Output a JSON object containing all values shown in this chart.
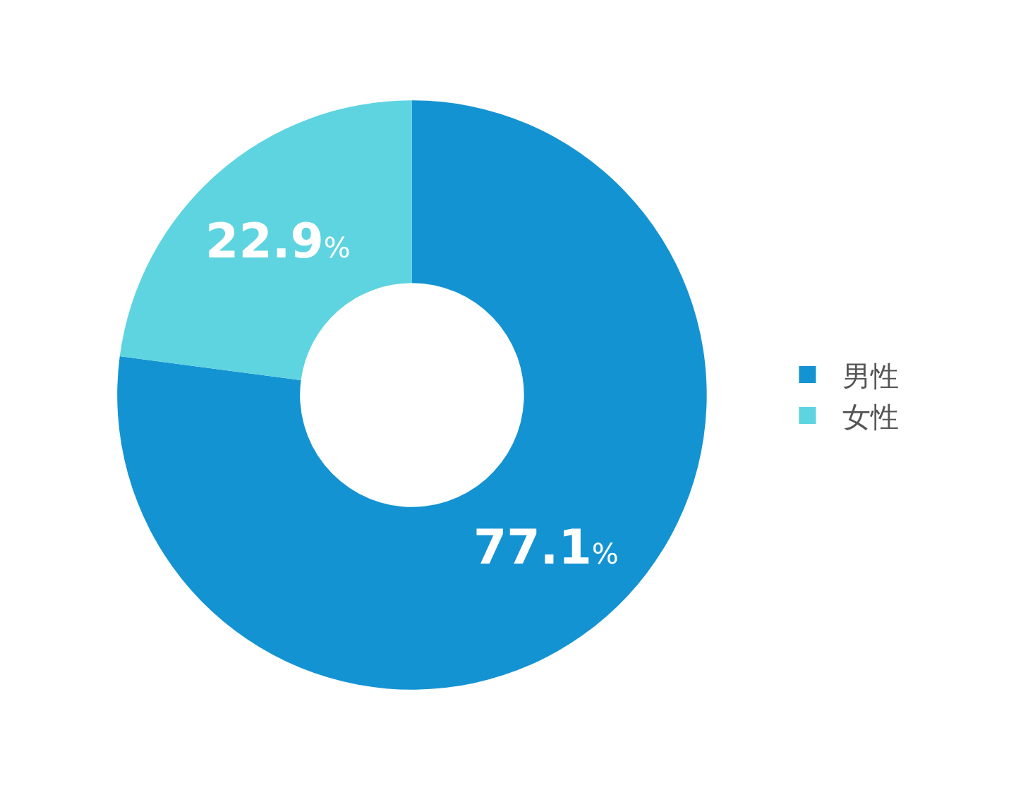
{
  "chart_data": {
    "type": "donut",
    "categories": [
      "男性",
      "女性"
    ],
    "values": [
      77.1,
      22.9
    ],
    "colors": [
      "#1493d3",
      "#5dd4e0"
    ],
    "value_labels": [
      "77.1%",
      "22.9%"
    ],
    "legend": "right"
  }
}
